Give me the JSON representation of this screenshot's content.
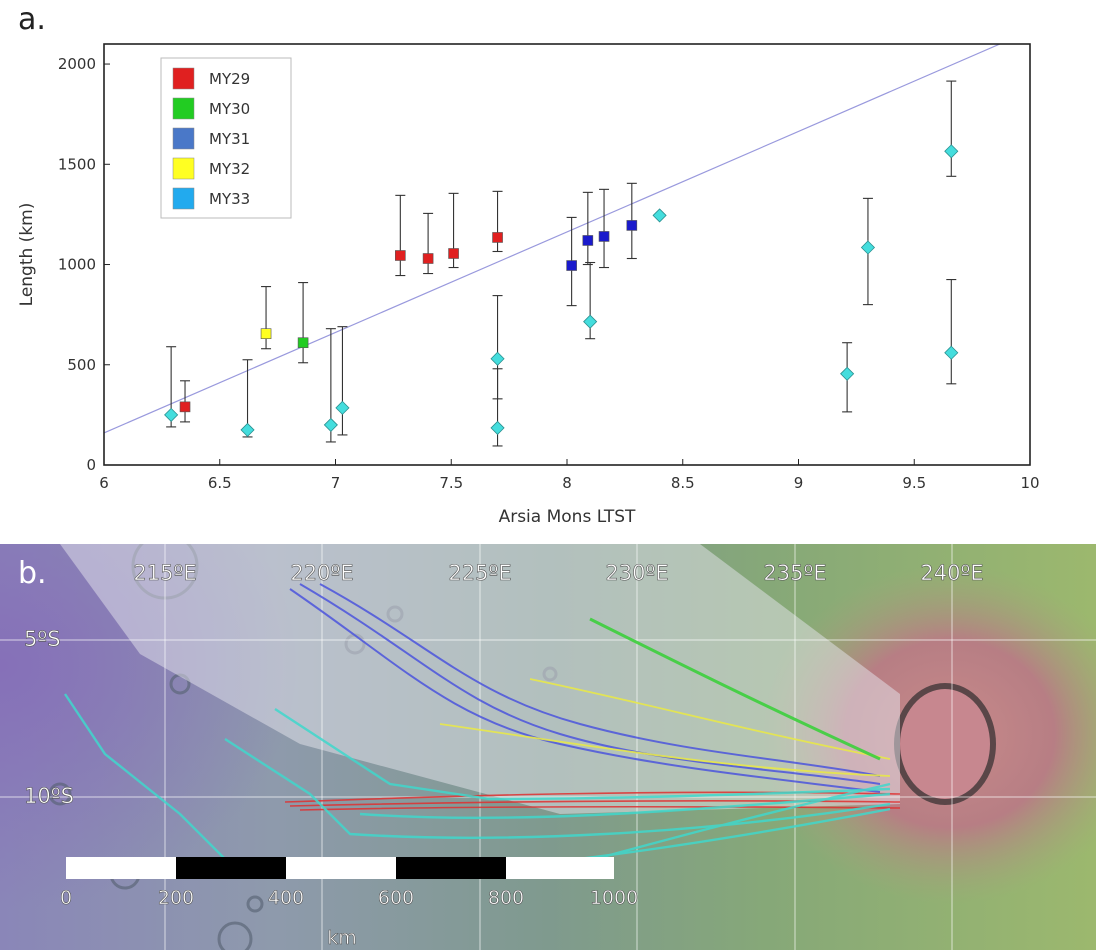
{
  "panel_a": {
    "letter": "a.",
    "chart_data": {
      "type": "scatter",
      "title": "",
      "xlabel": "Arsia Mons LTST",
      "ylabel": "Length (km)",
      "xlim": [
        6,
        10
      ],
      "ylim": [
        0,
        2100
      ],
      "xticks": [
        6,
        6.5,
        7,
        7.5,
        8,
        8.5,
        9,
        9.5,
        10
      ],
      "xtick_labels": [
        "6",
        "6.5",
        "7",
        "7.5",
        "8",
        "8.5",
        "9",
        "9.5",
        "10"
      ],
      "yticks": [
        0,
        500,
        1000,
        1500,
        2000
      ],
      "ytick_labels": [
        "0",
        "500",
        "1000",
        "1500",
        "2000"
      ],
      "grid": false,
      "legend_placement": "top-left",
      "series": [
        {
          "name": "MY29",
          "color": "#e02020",
          "marker": "square",
          "x": [
            6.35,
            7.28,
            7.4,
            7.51,
            7.7
          ],
          "y": [
            290,
            1045,
            1030,
            1055,
            1135
          ],
          "err_low": [
            215,
            945,
            955,
            985,
            1065
          ],
          "err_high": [
            420,
            1345,
            1255,
            1355,
            1365
          ]
        },
        {
          "name": "MY30",
          "color": "#22cc22",
          "marker": "square",
          "x": [
            6.86
          ],
          "y": [
            610
          ],
          "err_low": [
            510
          ],
          "err_high": [
            910
          ]
        },
        {
          "name": "MY31",
          "color": "#1a1acc",
          "legend_color": "#4a78c8",
          "marker": "square",
          "x": [
            8.02,
            8.09,
            8.16,
            8.28
          ],
          "y": [
            995,
            1120,
            1140,
            1195
          ],
          "err_low": [
            795,
            1000,
            985,
            1030
          ],
          "err_high": [
            1235,
            1360,
            1375,
            1405
          ]
        },
        {
          "name": "MY32",
          "color": "#ffff22",
          "marker": "square",
          "x": [
            6.7
          ],
          "y": [
            655
          ],
          "err_low": [
            580
          ],
          "err_high": [
            890
          ]
        },
        {
          "name": "MY33",
          "color": "#44dddd",
          "legend_color": "#22aaee",
          "marker": "diamond",
          "x": [
            6.29,
            6.62,
            6.98,
            7.03,
            7.7,
            7.7,
            8.1,
            8.4,
            9.21,
            9.3,
            9.66,
            9.66
          ],
          "y": [
            250,
            175,
            200,
            285,
            530,
            185,
            715,
            1245,
            455,
            1085,
            1565,
            560
          ],
          "err_low": [
            190,
            140,
            115,
            150,
            330,
            95,
            630,
            null,
            265,
            800,
            1440,
            405
          ],
          "err_high": [
            590,
            525,
            680,
            690,
            845,
            480,
            1010,
            null,
            610,
            1330,
            1915,
            925
          ]
        }
      ],
      "fit_line": {
        "x": [
          6,
          9.87
        ],
        "y": [
          160,
          2100
        ],
        "color": "#9999dd"
      }
    }
  },
  "panel_b": {
    "letter": "b.",
    "lon_labels": [
      "215ºE",
      "220ºE",
      "225ºE",
      "230ºE",
      "235ºE",
      "240ºE"
    ],
    "lat_labels": [
      "5ºS",
      "10ºS"
    ],
    "scale_bar": {
      "labels": [
        "0",
        "200",
        "400",
        "600",
        "800",
        "1000"
      ],
      "unit": "km"
    }
  }
}
